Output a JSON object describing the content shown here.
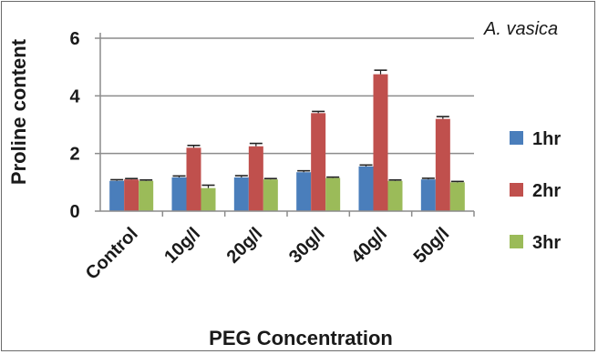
{
  "chart_data": {
    "type": "bar",
    "annotation": "A. vasica",
    "xlabel": "PEG Concentration",
    "ylabel": "Proline content",
    "categories": [
      "Control",
      "10g/l",
      "20g/l",
      "30g/l",
      "40g/l",
      "50g/l"
    ],
    "ylim": [
      0,
      6
    ],
    "yticks": [
      "0",
      "2",
      "4",
      "6"
    ],
    "grid": true,
    "legend_position": "right",
    "series": [
      {
        "name": "1hr",
        "color": "#4a7ebb",
        "values": [
          1.05,
          1.17,
          1.17,
          1.35,
          1.55,
          1.1
        ],
        "errors": [
          0.04,
          0.05,
          0.06,
          0.05,
          0.05,
          0.04
        ]
      },
      {
        "name": "2hr",
        "color": "#c0504d",
        "values": [
          1.1,
          2.2,
          2.25,
          3.4,
          4.75,
          3.2
        ],
        "errors": [
          0.03,
          0.08,
          0.1,
          0.06,
          0.14,
          0.08
        ]
      },
      {
        "name": "3hr",
        "color": "#9bbb59",
        "values": [
          1.05,
          0.8,
          1.1,
          1.15,
          1.05,
          1.0
        ],
        "errors": [
          0.03,
          0.1,
          0.03,
          0.03,
          0.03,
          0.03
        ]
      }
    ]
  }
}
